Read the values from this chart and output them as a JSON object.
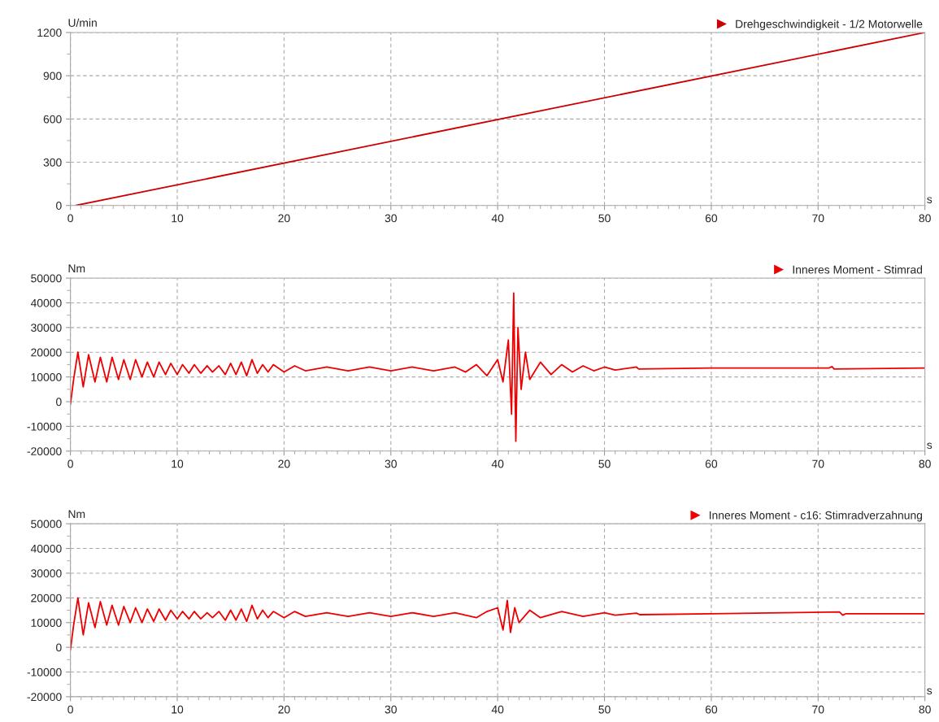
{
  "chart_data": [
    {
      "type": "line",
      "ylabel": "U/min",
      "xlabel": "s",
      "xlim": [
        0,
        80
      ],
      "xticks": [
        0,
        10,
        20,
        30,
        40,
        50,
        60,
        70,
        80
      ],
      "ylim": [
        0,
        1200
      ],
      "yticks": [
        0,
        300,
        600,
        900,
        1200
      ],
      "grid": true,
      "legend": "top right",
      "series": [
        {
          "name": "Drehgeschwindigkeit - 1/2 Motorwelle",
          "color": "#cc0000",
          "x": [
            0.5,
            80
          ],
          "values": [
            0,
            1200
          ]
        }
      ]
    },
    {
      "type": "line",
      "ylabel": "Nm",
      "xlabel": "s",
      "xlim": [
        0,
        80
      ],
      "xticks": [
        0,
        10,
        20,
        30,
        40,
        50,
        60,
        70,
        80
      ],
      "ylim": [
        -20000,
        50000
      ],
      "yticks": [
        -20000,
        -10000,
        0,
        10000,
        20000,
        30000,
        40000,
        50000
      ],
      "grid": true,
      "legend": "top right",
      "series": [
        {
          "name": "Inneres Moment - Stimrad",
          "color": "#ee0000",
          "x": [
            0,
            0.3,
            0.7,
            1.2,
            1.7,
            2.3,
            2.8,
            3.4,
            3.9,
            4.5,
            5,
            5.6,
            6.1,
            6.7,
            7.2,
            7.8,
            8.3,
            8.9,
            9.4,
            10,
            10.5,
            11.1,
            11.6,
            12.2,
            12.8,
            13.3,
            13.9,
            14.5,
            15,
            15.5,
            16,
            16.5,
            17,
            17.5,
            18,
            18.5,
            19,
            20,
            21,
            22,
            24,
            26,
            28,
            30,
            32,
            34,
            36,
            37,
            38,
            39,
            40,
            40.5,
            41,
            41.3,
            41.5,
            41.7,
            41.9,
            42.2,
            42.6,
            43,
            44,
            45,
            46,
            47,
            48,
            49,
            50,
            51,
            53,
            53.2,
            60,
            71,
            71.3,
            71.5,
            80
          ],
          "values": [
            -1000,
            9000,
            20000,
            6000,
            19000,
            8000,
            18000,
            8000,
            18000,
            9000,
            17000,
            9000,
            17000,
            10000,
            16000,
            10000,
            16000,
            11000,
            15500,
            11000,
            15000,
            11500,
            15000,
            11500,
            14500,
            12000,
            14500,
            11000,
            15500,
            11000,
            16000,
            10500,
            17000,
            11500,
            15000,
            12000,
            15000,
            12000,
            14500,
            12500,
            14000,
            12500,
            14000,
            12500,
            14000,
            12500,
            14000,
            12000,
            15000,
            10500,
            17000,
            8000,
            25000,
            -5000,
            44000,
            -16000,
            30000,
            5000,
            20000,
            9000,
            16000,
            11000,
            15000,
            12000,
            14500,
            12500,
            14000,
            12800,
            14000,
            13200,
            13600,
            13600,
            14200,
            13200,
            13600
          ]
        }
      ]
    },
    {
      "type": "line",
      "ylabel": "Nm",
      "xlabel": "s",
      "xlim": [
        0,
        80
      ],
      "xticks": [
        0,
        10,
        20,
        30,
        40,
        50,
        60,
        70,
        80
      ],
      "ylim": [
        -20000,
        50000
      ],
      "yticks": [
        -20000,
        -10000,
        0,
        10000,
        20000,
        30000,
        40000,
        50000
      ],
      "grid": true,
      "legend": "top right",
      "series": [
        {
          "name": "Inneres Moment - c16: Stimradverzahnung",
          "color": "#ee0000",
          "x": [
            0,
            0.3,
            0.7,
            1.2,
            1.7,
            2.3,
            2.8,
            3.4,
            3.9,
            4.5,
            5,
            5.6,
            6.1,
            6.7,
            7.2,
            7.8,
            8.3,
            8.9,
            9.4,
            10,
            10.5,
            11.1,
            11.6,
            12.2,
            12.8,
            13.3,
            13.9,
            14.5,
            15,
            15.5,
            16,
            16.5,
            17,
            17.5,
            18,
            18.5,
            19,
            20,
            21,
            22,
            24,
            26,
            28,
            30,
            32,
            34,
            36,
            38,
            39,
            40,
            40.5,
            40.9,
            41.2,
            41.6,
            42,
            43,
            44,
            46,
            48,
            50,
            51,
            53,
            53.3,
            60,
            72,
            72.3,
            72.6,
            80
          ],
          "values": [
            -1000,
            9000,
            20000,
            5000,
            18000,
            8000,
            18500,
            9000,
            17000,
            9000,
            16500,
            10000,
            16000,
            10000,
            15500,
            10500,
            15500,
            11000,
            15000,
            11500,
            14500,
            11500,
            14500,
            11500,
            14000,
            12000,
            14500,
            11000,
            15000,
            11000,
            15500,
            10500,
            17000,
            11500,
            15000,
            12000,
            14500,
            12000,
            14500,
            12500,
            14000,
            12500,
            14000,
            12500,
            14000,
            12500,
            14000,
            12000,
            14500,
            16000,
            7000,
            19000,
            6000,
            16000,
            10000,
            15000,
            12000,
            14500,
            12500,
            14000,
            13000,
            13800,
            13200,
            13600,
            14300,
            13000,
            13600,
            13600
          ]
        }
      ]
    }
  ]
}
